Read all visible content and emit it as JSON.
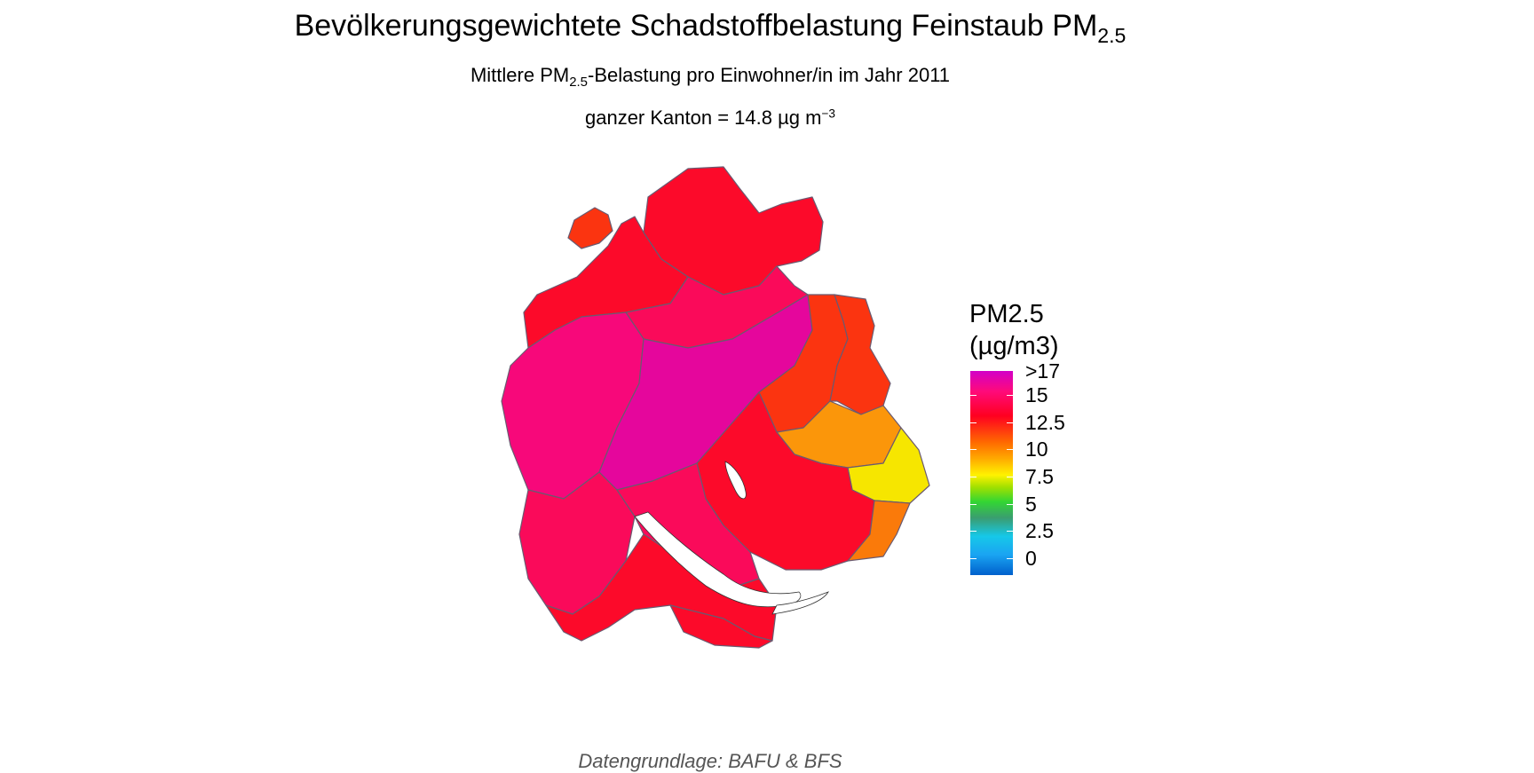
{
  "header": {
    "title_main": "Bevölkerungsgewichtete Schadstoffbelastung Feinstaub PM",
    "title_sub": "2.5",
    "subtitle_pre": "Mittlere PM",
    "subtitle_sub": "2.5",
    "subtitle_post": "-Belastung pro Einwohner/in im Jahr 2011",
    "subtitle2_pre": "ganzer Kanton = 14.8 µg m",
    "subtitle2_sup": "−3"
  },
  "legend": {
    "title_line1": "PM2.5",
    "title_line2": "(µg/m3)",
    "labels": [
      ">17",
      "15",
      "12.5",
      "10",
      "7.5",
      "5",
      "2.5",
      "0"
    ],
    "colors": {
      "max": "#d200c8",
      "high": "#ff0a7a",
      "red": "#ff0020",
      "orange": "#ff6a00",
      "yellow": "#fff200",
      "green": "#33d633",
      "cyan": "#16c8e8",
      "blue": "#0060cc"
    }
  },
  "map": {
    "region": "Kanton Zürich",
    "region_colors": {
      "magenta": "#e5069c",
      "pink": "#f7087a",
      "deep_pink": "#fa0a5a",
      "red": "#fc0a2a",
      "orange_red": "#fb3410",
      "orange": "#fa7a0a",
      "light_orange": "#fb960a",
      "yellow": "#f6e600",
      "lake": "#ffffff"
    }
  },
  "caption": "Datengrundlage: BAFU & BFS"
}
